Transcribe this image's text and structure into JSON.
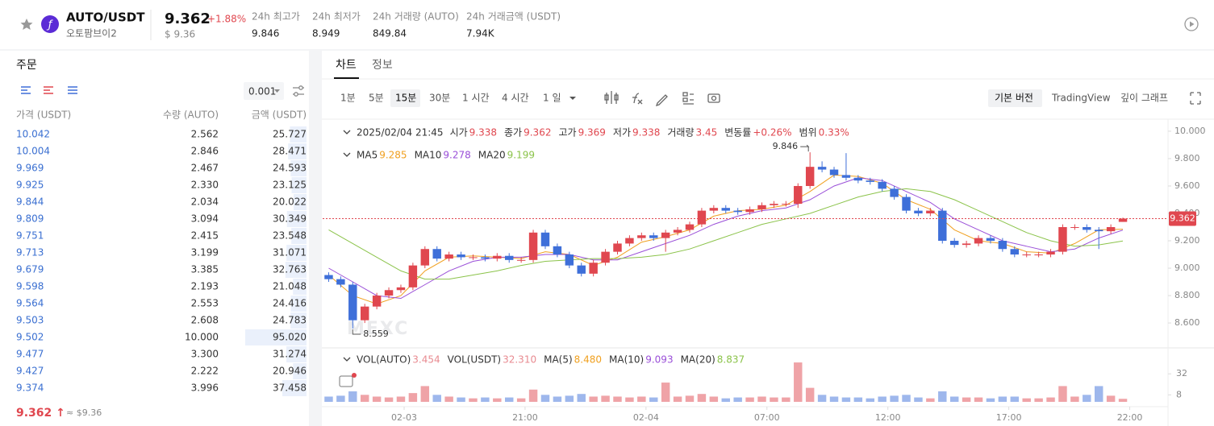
{
  "header": {
    "pair": "AUTO/USDT",
    "name": "오토팜브이2",
    "price": "9.362",
    "change": "+1.88%",
    "price_usd": "$ 9.36",
    "stats": [
      {
        "label": "24h 최고가",
        "value": "9.846"
      },
      {
        "label": "24h 최저가",
        "value": "8.949"
      },
      {
        "label": "24h 거래량 (AUTO)",
        "value": "849.84"
      },
      {
        "label": "24h 거래금액 (USDT)",
        "value": "7.94K"
      }
    ]
  },
  "orderbook": {
    "title": "주문",
    "step": "0.001",
    "columns": [
      "가격 (USDT)",
      "수량 (AUTO)",
      "금액 (USDT)"
    ],
    "rows": [
      [
        "10.042",
        "2.562",
        "25.727"
      ],
      [
        "10.004",
        "2.846",
        "28.471"
      ],
      [
        "9.969",
        "2.467",
        "24.593"
      ],
      [
        "9.925",
        "2.330",
        "23.125"
      ],
      [
        "9.844",
        "2.034",
        "20.022"
      ],
      [
        "9.809",
        "3.094",
        "30.349"
      ],
      [
        "9.751",
        "2.415",
        "23.548"
      ],
      [
        "9.713",
        "3.199",
        "31.071"
      ],
      [
        "9.679",
        "3.385",
        "32.763"
      ],
      [
        "9.598",
        "2.193",
        "21.048"
      ],
      [
        "9.564",
        "2.553",
        "24.416"
      ],
      [
        "9.503",
        "2.608",
        "24.783"
      ],
      [
        "9.502",
        "10.000",
        "95.020"
      ],
      [
        "9.477",
        "3.300",
        "31.274"
      ],
      [
        "9.427",
        "2.222",
        "20.946"
      ],
      [
        "9.374",
        "3.996",
        "37.458"
      ]
    ],
    "last_price": "9.362 ↑",
    "last_usd": "≈ $9.36"
  },
  "tabs": [
    "차트",
    "정보"
  ],
  "intervals": [
    "1분",
    "5분",
    "15분",
    "30분",
    "1 시간",
    "4 시간",
    "1 일"
  ],
  "views": [
    "기본 버전",
    "TradingView",
    "깊이 그래프"
  ],
  "chart_data": {
    "type": "candlestick",
    "watermark": "MEXC",
    "info_date": "2025/02/04 21:45",
    "info": [
      {
        "label": "시가",
        "value": "9.338"
      },
      {
        "label": "종가",
        "value": "9.362"
      },
      {
        "label": "고가",
        "value": "9.369"
      },
      {
        "label": "저가",
        "value": "9.338"
      },
      {
        "label": "거래량",
        "value": "3.45"
      },
      {
        "label": "변동률",
        "value": "+0.26%"
      },
      {
        "label": "범위",
        "value": "0.33%"
      }
    ],
    "up_color": "#e0474f",
    "down_color": "#3e6fd9",
    "candles": [
      [
        8.95,
        8.97,
        8.9,
        8.92
      ],
      [
        8.92,
        8.94,
        8.86,
        8.88
      ],
      [
        8.88,
        8.9,
        8.559,
        8.62
      ],
      [
        8.62,
        8.74,
        8.6,
        8.72
      ],
      [
        8.72,
        8.82,
        8.7,
        8.8
      ],
      [
        8.8,
        8.86,
        8.78,
        8.84
      ],
      [
        8.84,
        8.88,
        8.82,
        8.86
      ],
      [
        8.86,
        9.04,
        8.84,
        9.02
      ],
      [
        9.02,
        9.16,
        9.0,
        9.14
      ],
      [
        9.14,
        9.16,
        9.05,
        9.07
      ],
      [
        9.07,
        9.12,
        9.05,
        9.1
      ],
      [
        9.1,
        9.12,
        9.06,
        9.08
      ],
      [
        9.08,
        9.1,
        9.06,
        9.08
      ],
      [
        9.08,
        9.1,
        9.05,
        9.07
      ],
      [
        9.07,
        9.11,
        9.05,
        9.09
      ],
      [
        9.09,
        9.11,
        9.04,
        9.06
      ],
      [
        9.06,
        9.08,
        9.04,
        9.06
      ],
      [
        9.06,
        9.28,
        9.04,
        9.26
      ],
      [
        9.26,
        9.28,
        9.14,
        9.16
      ],
      [
        9.16,
        9.18,
        9.08,
        9.1
      ],
      [
        9.1,
        9.12,
        9.0,
        9.02
      ],
      [
        9.02,
        9.04,
        8.94,
        8.96
      ],
      [
        8.96,
        9.06,
        8.94,
        9.04
      ],
      [
        9.04,
        9.14,
        9.02,
        9.12
      ],
      [
        9.12,
        9.2,
        9.1,
        9.18
      ],
      [
        9.18,
        9.24,
        9.16,
        9.22
      ],
      [
        9.22,
        9.26,
        9.2,
        9.24
      ],
      [
        9.24,
        9.26,
        9.2,
        9.22
      ],
      [
        9.22,
        9.28,
        9.12,
        9.26
      ],
      [
        9.26,
        9.3,
        9.24,
        9.28
      ],
      [
        9.28,
        9.34,
        9.26,
        9.32
      ],
      [
        9.32,
        9.44,
        9.3,
        9.42
      ],
      [
        9.42,
        9.46,
        9.4,
        9.44
      ],
      [
        9.44,
        9.46,
        9.4,
        9.42
      ],
      [
        9.42,
        9.44,
        9.39,
        9.41
      ],
      [
        9.41,
        9.45,
        9.39,
        9.43
      ],
      [
        9.43,
        9.48,
        9.41,
        9.46
      ],
      [
        9.46,
        9.49,
        9.44,
        9.47
      ],
      [
        9.47,
        9.49,
        9.45,
        9.47
      ],
      [
        9.47,
        9.62,
        9.44,
        9.6
      ],
      [
        9.6,
        9.846,
        9.58,
        9.74
      ],
      [
        9.74,
        9.78,
        9.7,
        9.72
      ],
      [
        9.72,
        9.74,
        9.66,
        9.68
      ],
      [
        9.68,
        9.84,
        9.64,
        9.66
      ],
      [
        9.66,
        9.68,
        9.62,
        9.64
      ],
      [
        9.64,
        9.66,
        9.61,
        9.63
      ],
      [
        9.63,
        9.65,
        9.56,
        9.58
      ],
      [
        9.58,
        9.6,
        9.5,
        9.52
      ],
      [
        9.52,
        9.54,
        9.4,
        9.42
      ],
      [
        9.42,
        9.44,
        9.38,
        9.4
      ],
      [
        9.4,
        9.44,
        9.38,
        9.42
      ],
      [
        9.42,
        9.44,
        9.18,
        9.2
      ],
      [
        9.2,
        9.22,
        9.15,
        9.17
      ],
      [
        9.17,
        9.2,
        9.15,
        9.18
      ],
      [
        9.18,
        9.24,
        9.16,
        9.22
      ],
      [
        9.22,
        9.24,
        9.18,
        9.2
      ],
      [
        9.2,
        9.22,
        9.12,
        9.14
      ],
      [
        9.14,
        9.16,
        9.08,
        9.1
      ],
      [
        9.1,
        9.12,
        9.08,
        9.1
      ],
      [
        9.1,
        9.12,
        9.08,
        9.1
      ],
      [
        9.1,
        9.14,
        9.08,
        9.12
      ],
      [
        9.12,
        9.32,
        9.1,
        9.3
      ],
      [
        9.3,
        9.32,
        9.28,
        9.3
      ],
      [
        9.3,
        9.32,
        9.26,
        9.28
      ],
      [
        9.28,
        9.3,
        9.14,
        9.27
      ],
      [
        9.27,
        9.32,
        9.25,
        9.3
      ],
      [
        9.338,
        9.369,
        9.338,
        9.362
      ]
    ],
    "volumes": [
      6,
      7,
      12,
      8,
      6,
      5,
      6,
      10,
      18,
      8,
      6,
      5,
      4,
      5,
      4,
      5,
      4,
      14,
      8,
      6,
      7,
      9,
      6,
      7,
      6,
      5,
      6,
      5,
      22,
      6,
      7,
      9,
      6,
      4,
      5,
      5,
      6,
      5,
      5,
      45,
      16,
      8,
      6,
      5,
      5,
      4,
      6,
      7,
      8,
      5,
      4,
      12,
      6,
      5,
      5,
      4,
      6,
      6,
      4,
      4,
      5,
      18,
      6,
      8,
      18,
      7,
      3.454
    ],
    "ma_step": 2,
    "ma_series": [
      {
        "name": "MA5",
        "value": "9.285",
        "color": "#f0a020",
        "values": [
          8.95,
          8.8,
          8.74,
          8.8,
          8.98,
          9.08,
          9.09,
          9.08,
          9.07,
          9.12,
          9.1,
          9.02,
          9.08,
          9.19,
          9.23,
          9.28,
          9.38,
          9.42,
          9.43,
          9.46,
          9.56,
          9.68,
          9.67,
          9.62,
          9.5,
          9.43,
          9.28,
          9.2,
          9.18,
          9.12,
          9.11,
          9.18,
          9.28,
          9.285
        ]
      },
      {
        "name": "MA10",
        "value": "9.278",
        "color": "#9a4fd8",
        "values": [
          9.0,
          8.9,
          8.8,
          8.78,
          8.88,
          8.98,
          9.05,
          9.08,
          9.08,
          9.1,
          9.1,
          9.06,
          9.06,
          9.12,
          9.18,
          9.24,
          9.32,
          9.38,
          9.42,
          9.44,
          9.5,
          9.6,
          9.66,
          9.64,
          9.56,
          9.48,
          9.36,
          9.28,
          9.2,
          9.16,
          9.12,
          9.14,
          9.22,
          9.278
        ]
      },
      {
        "name": "MA20",
        "value": "9.199",
        "color": "#8bc34a",
        "values": [
          9.28,
          9.18,
          9.08,
          8.98,
          8.92,
          8.92,
          8.95,
          8.98,
          9.02,
          9.05,
          9.06,
          9.07,
          9.07,
          9.08,
          9.1,
          9.14,
          9.2,
          9.26,
          9.32,
          9.36,
          9.4,
          9.46,
          9.52,
          9.56,
          9.58,
          9.56,
          9.5,
          9.42,
          9.34,
          9.26,
          9.2,
          9.16,
          9.17,
          9.199
        ]
      }
    ],
    "vol_legend": [
      {
        "name": "VOL(AUTO)",
        "value": "3.454",
        "color": "#e88a90"
      },
      {
        "name": "VOL(USDT)",
        "value": "32.310",
        "color": "#e88a90"
      },
      {
        "name": "MA(5)",
        "value": "8.480",
        "color": "#f0a020"
      },
      {
        "name": "MA(10)",
        "value": "9.093",
        "color": "#9a4fd8"
      },
      {
        "name": "MA(20)",
        "value": "8.837",
        "color": "#8bc34a"
      }
    ],
    "last_price": 9.362,
    "ylim": [
      8.43,
      10.076
    ],
    "yticks": [
      {
        "value": 10,
        "label": "10.000"
      },
      {
        "value": 9.8,
        "label": "9.800"
      },
      {
        "value": 9.6,
        "label": "9.600"
      },
      {
        "value": 9.4,
        "label": "9.400"
      },
      {
        "value": 9.2,
        "label": "9.200"
      },
      {
        "value": 9,
        "label": "9.000"
      },
      {
        "value": 8.8,
        "label": "8.800"
      },
      {
        "value": 8.6,
        "label": "8.600"
      }
    ],
    "vol_ylim": [
      0,
      46
    ],
    "vol_yticks": [
      32,
      8
    ],
    "xlim": [
      0,
      67.1
    ],
    "xticks": [
      {
        "value": 6.77,
        "label": "02-03"
      },
      {
        "value": 16.82,
        "label": "21:00"
      },
      {
        "value": 26.87,
        "label": "02-04"
      },
      {
        "value": 36.92,
        "label": "07:00"
      },
      {
        "value": 46.97,
        "label": "12:00"
      },
      {
        "value": 57.02,
        "label": "17:00"
      },
      {
        "value": 67.07,
        "label": "22:00"
      }
    ]
  }
}
